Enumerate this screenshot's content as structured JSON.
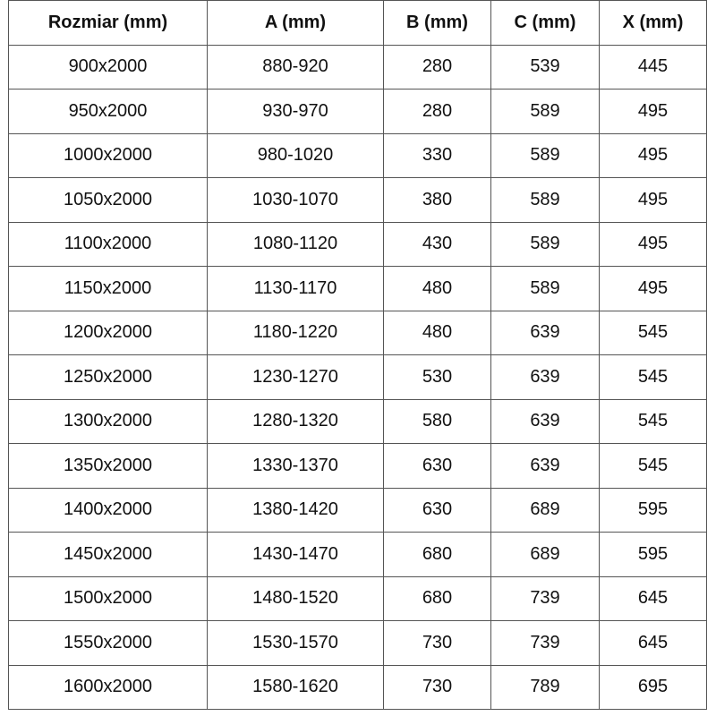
{
  "table": {
    "headers": [
      "Rozmiar (mm)",
      "A (mm)",
      "B (mm)",
      "C (mm)",
      "X (mm)"
    ],
    "rows": [
      [
        "900x2000",
        "880-920",
        "280",
        "539",
        "445"
      ],
      [
        "950x2000",
        "930-970",
        "280",
        "589",
        "495"
      ],
      [
        "1000x2000",
        "980-1020",
        "330",
        "589",
        "495"
      ],
      [
        "1050x2000",
        "1030-1070",
        "380",
        "589",
        "495"
      ],
      [
        "1100x2000",
        "1080-1120",
        "430",
        "589",
        "495"
      ],
      [
        "1150x2000",
        "1130-1170",
        "480",
        "589",
        "495"
      ],
      [
        "1200x2000",
        "1180-1220",
        "480",
        "639",
        "545"
      ],
      [
        "1250x2000",
        "1230-1270",
        "530",
        "639",
        "545"
      ],
      [
        "1300x2000",
        "1280-1320",
        "580",
        "639",
        "545"
      ],
      [
        "1350x2000",
        "1330-1370",
        "630",
        "639",
        "545"
      ],
      [
        "1400x2000",
        "1380-1420",
        "630",
        "689",
        "595"
      ],
      [
        "1450x2000",
        "1430-1470",
        "680",
        "689",
        "595"
      ],
      [
        "1500x2000",
        "1480-1520",
        "680",
        "739",
        "645"
      ],
      [
        "1550x2000",
        "1530-1570",
        "730",
        "739",
        "645"
      ],
      [
        "1600x2000",
        "1580-1620",
        "730",
        "789",
        "695"
      ]
    ]
  }
}
